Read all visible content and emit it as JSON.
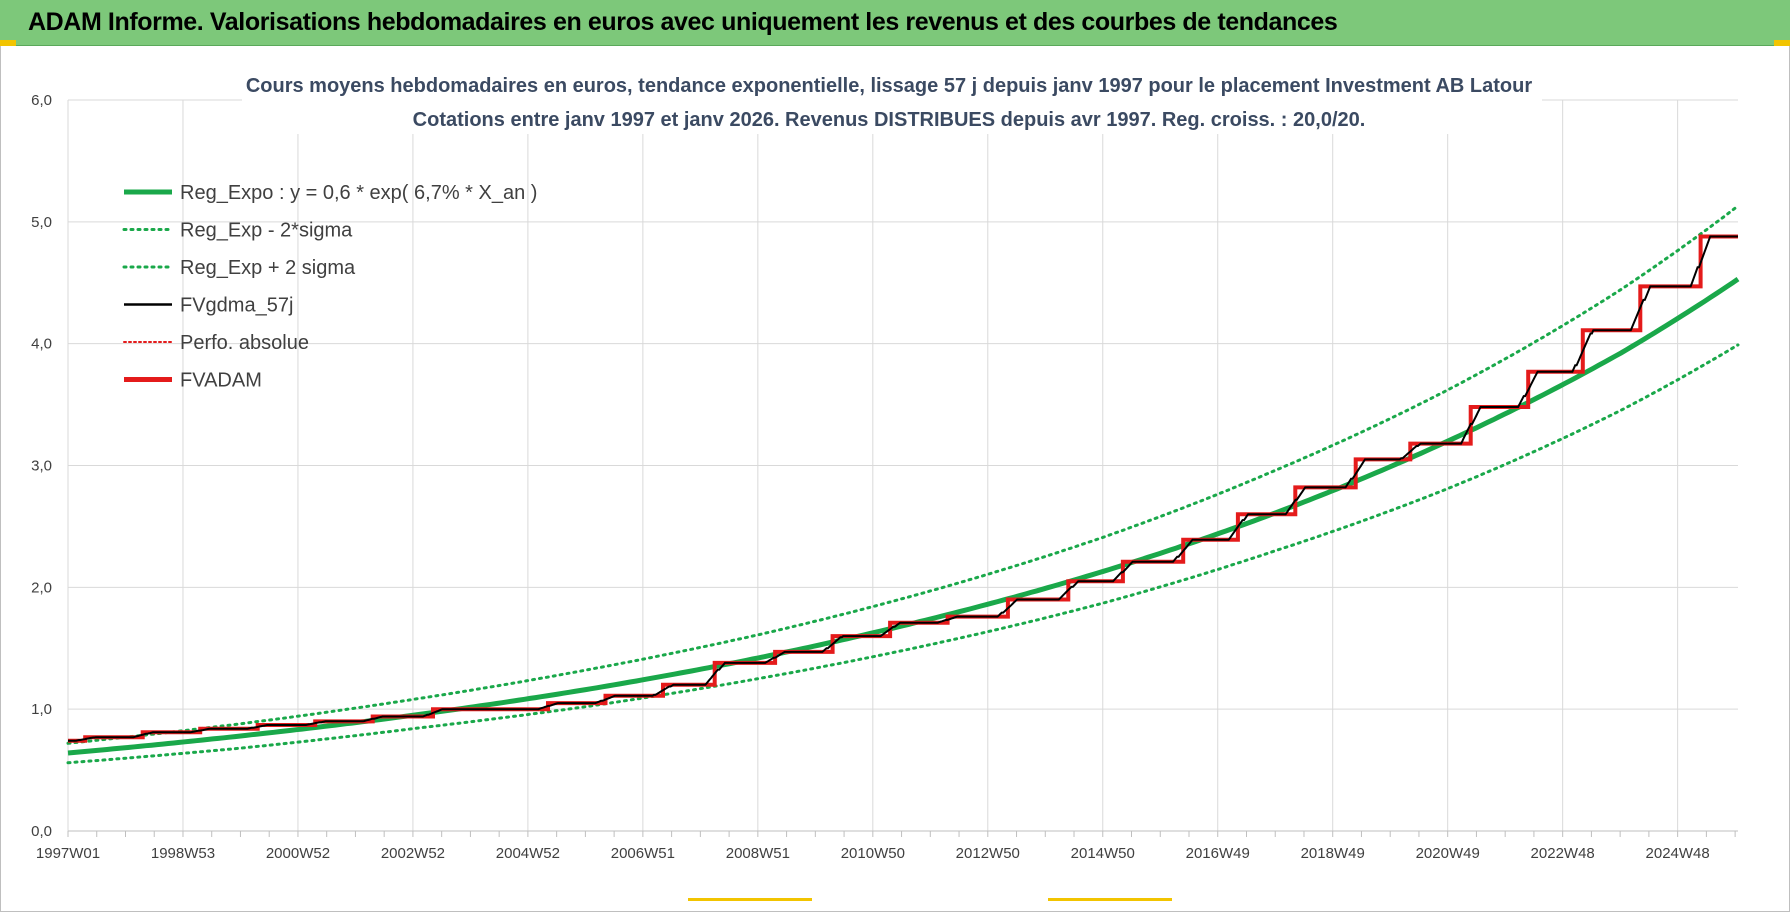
{
  "banner": {
    "title": "ADAM Informe. Valorisations hebdomadaires en euros avec uniquement les revenus et des courbes de tendances"
  },
  "colors": {
    "banner_bg": "#7dc87a",
    "trend_green": "#1aa84a",
    "fvgdma_black": "#000000",
    "fvadam_red": "#e41b1b",
    "grid": "#d9d9d9",
    "title_text": "#3b4a62"
  },
  "chart_data": {
    "type": "line",
    "title_line1": "Cours moyens hebdomadaires en euros, tendance exponentielle, lissage 57 j depuis janv 1997  pour le placement Investment AB Latour",
    "title_line2": "Cotations entre janv 1997 et janv 2026. Revenus DISTRIBUES depuis avr 1997.  Reg. croiss. : 20,0/20.",
    "xlabel": "",
    "ylabel": "",
    "x_range_years": [
      1997.0,
      2026.05
    ],
    "ylim": [
      0.0,
      6.0
    ],
    "y_ticks": [
      0.0,
      1.0,
      2.0,
      3.0,
      4.0,
      5.0,
      6.0
    ],
    "y_tick_labels": [
      "0,0",
      "1,0",
      "2,0",
      "3,0",
      "4,0",
      "5,0",
      "6,0"
    ],
    "x_tick_labels": [
      "1997W01",
      "1998W53",
      "2000W52",
      "2002W52",
      "2004W52",
      "2006W51",
      "2008W51",
      "2010W50",
      "2012W50",
      "2014W50",
      "2016W49",
      "2018W49",
      "2020W49",
      "2022W48",
      "2024W48"
    ],
    "grid": true,
    "legend_position": "top-left",
    "legend": [
      {
        "label": "Reg_Expo : y = 0,6 * exp( 6,7% *  X_an )",
        "style": "solid-thick",
        "color": "#1aa84a"
      },
      {
        "label": "Reg_Exp - 2*sigma",
        "style": "dotted",
        "color": "#1aa84a"
      },
      {
        "label": "Reg_Exp + 2 sigma",
        "style": "dotted",
        "color": "#1aa84a"
      },
      {
        "label": "FVgdma_57j",
        "style": "solid",
        "color": "#000000"
      },
      {
        "label": "Perfo. absolue",
        "style": "dotted",
        "color": "#e41b1b"
      },
      {
        "label": "FVADAM",
        "style": "solid-thick",
        "color": "#e41b1b"
      }
    ],
    "series": [
      {
        "name": "Reg_Expo : y = 0,6 * exp( 6,7% *  X_an )",
        "x": [
          1997.0,
          2000.0,
          2003.0,
          2006.0,
          2009.0,
          2012.0,
          2015.0,
          2018.0,
          2021.0,
          2024.0,
          2026.05
        ],
        "y": [
          0.64,
          0.78,
          0.95,
          1.16,
          1.42,
          1.74,
          2.13,
          2.61,
          3.2,
          3.92,
          4.53
        ]
      },
      {
        "name": "Reg_Exp - 2*sigma",
        "x": [
          1997.0,
          2000.0,
          2003.0,
          2006.0,
          2009.0,
          2012.0,
          2015.0,
          2018.0,
          2021.0,
          2024.0,
          2026.05
        ],
        "y": [
          0.56,
          0.68,
          0.84,
          1.02,
          1.25,
          1.53,
          1.87,
          2.3,
          2.81,
          3.45,
          3.99
        ]
      },
      {
        "name": "Reg_Exp + 2 sigma",
        "x": [
          1997.0,
          2000.0,
          2003.0,
          2006.0,
          2009.0,
          2012.0,
          2015.0,
          2018.0,
          2021.0,
          2024.0,
          2026.05
        ],
        "y": [
          0.72,
          0.88,
          1.08,
          1.32,
          1.61,
          1.97,
          2.41,
          2.96,
          3.62,
          4.44,
          5.13
        ]
      },
      {
        "name": "FVADAM",
        "steps_x": [
          1997.0,
          1997.3,
          1998.3,
          1999.3,
          2000.3,
          2001.3,
          2002.3,
          2003.35,
          2004.3,
          2005.35,
          2006.35,
          2007.35,
          2008.25,
          2009.3,
          2010.3,
          2011.3,
          2012.3,
          2013.35,
          2014.4,
          2015.35,
          2016.4,
          2017.35,
          2018.35,
          2019.4,
          2020.35,
          2021.4,
          2022.4,
          2023.35,
          2024.35,
          2025.4,
          2026.05
        ],
        "steps_y": [
          0.74,
          0.77,
          0.81,
          0.84,
          0.87,
          0.9,
          0.94,
          1.0,
          1.0,
          1.05,
          1.11,
          1.2,
          1.38,
          1.47,
          1.6,
          1.71,
          1.76,
          1.9,
          2.05,
          2.21,
          2.39,
          2.6,
          2.82,
          3.05,
          3.18,
          3.48,
          3.77,
          4.11,
          4.47,
          4.88,
          4.88
        ]
      },
      {
        "name": "FVgdma_57j",
        "follows": "FVADAM",
        "smoothing_years": 0.16
      },
      {
        "name": "Perfo. absolue",
        "follows": "FVADAM",
        "style": "dotted"
      }
    ]
  }
}
